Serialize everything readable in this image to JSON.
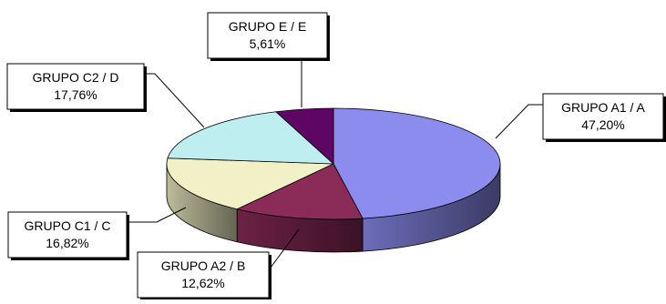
{
  "chart_data": {
    "type": "pie",
    "style": "3d",
    "legend": "none",
    "slices": [
      {
        "label": "GRUPO A1 / A",
        "value": 47.2,
        "value_text": "47,20%",
        "color": "#8c8cee"
      },
      {
        "label": "GRUPO A2 / B",
        "value": 12.62,
        "value_text": "12,62%",
        "color": "#8b2c58"
      },
      {
        "label": "GRUPO C1 / C",
        "value": 16.82,
        "value_text": "16,82%",
        "color": "#f1f0c6"
      },
      {
        "label": "GRUPO C2 / D",
        "value": 17.76,
        "value_text": "17,76%",
        "color": "#bfeef0"
      },
      {
        "label": "GRUPO E / E",
        "value": 5.61,
        "value_text": "5,61%",
        "color": "#5e0663"
      }
    ]
  }
}
